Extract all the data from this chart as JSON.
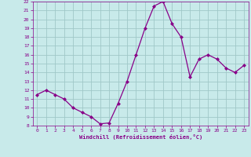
{
  "x": [
    0,
    1,
    2,
    3,
    4,
    5,
    6,
    7,
    8,
    9,
    10,
    11,
    12,
    13,
    14,
    15,
    16,
    17,
    18,
    19,
    20,
    21,
    22,
    23
  ],
  "y": [
    11.5,
    12.0,
    11.5,
    11.0,
    10.0,
    9.5,
    9.0,
    8.2,
    8.3,
    10.5,
    13.0,
    16.0,
    19.0,
    21.5,
    22.0,
    19.5,
    18.0,
    13.5,
    15.5,
    16.0,
    15.5,
    14.5,
    14.0,
    14.8
  ],
  "line_color": "#880088",
  "marker": "D",
  "marker_size": 2.0,
  "bg_color": "#c8eaea",
  "grid_color": "#a0c8c8",
  "xlabel": "Windchill (Refroidissement éolien,°C)",
  "xlabel_color": "#880088",
  "tick_color": "#880088",
  "ylim": [
    8,
    22
  ],
  "xlim": [
    -0.5,
    23.5
  ],
  "yticks": [
    8,
    9,
    10,
    11,
    12,
    13,
    14,
    15,
    16,
    17,
    18,
    19,
    20,
    21,
    22
  ],
  "xticks": [
    0,
    1,
    2,
    3,
    4,
    5,
    6,
    7,
    8,
    9,
    10,
    11,
    12,
    13,
    14,
    15,
    16,
    17,
    18,
    19,
    20,
    21,
    22,
    23
  ]
}
